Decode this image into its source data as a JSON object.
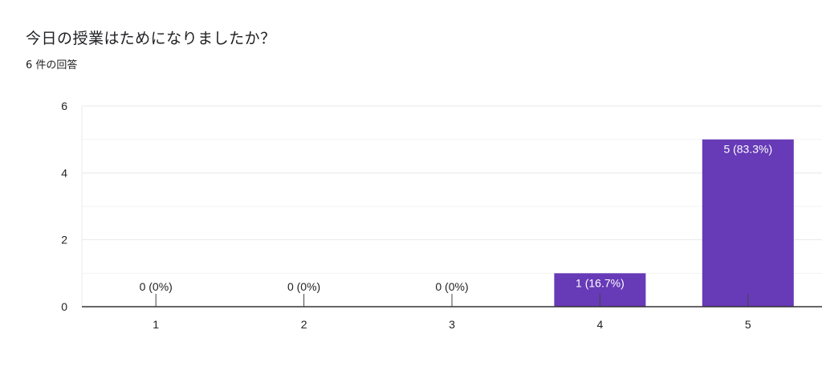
{
  "header": {
    "question": "今日の授業はためになりましたか？",
    "response_count": "6 件の回答"
  },
  "chart_data": {
    "type": "bar",
    "categories": [
      "1",
      "2",
      "3",
      "4",
      "5"
    ],
    "values": [
      0,
      0,
      0,
      1,
      5
    ],
    "data_labels": [
      "0 (0%)",
      "0 (0%)",
      "0 (0%)",
      "1 (16.7%)",
      "5 (83.3%)"
    ],
    "ylim": [
      0,
      6
    ],
    "yticks": [
      0,
      2,
      4,
      6
    ],
    "grid": true,
    "bar_color": "#673ab7",
    "label_color_inside": "#ffffff",
    "label_color_outside": "#222222"
  }
}
